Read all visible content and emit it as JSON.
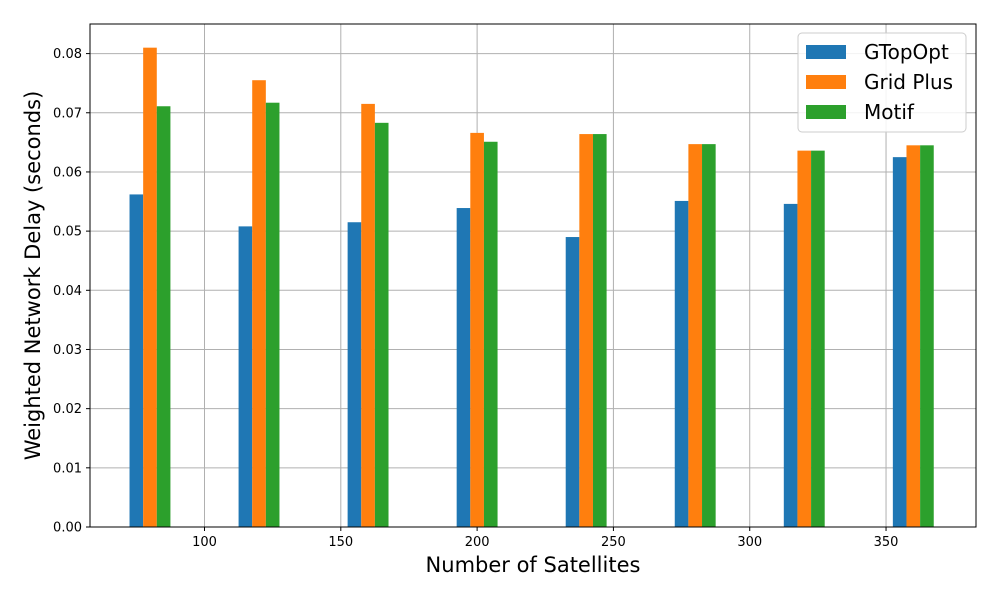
{
  "chart_data": {
    "type": "bar",
    "xlabel": "Number of Satellites",
    "ylabel": "Weighted Network Delay (seconds)",
    "x": [
      80,
      120,
      160,
      200,
      240,
      280,
      320,
      360
    ],
    "bar_width": 5,
    "xlim": [
      58,
      383
    ],
    "ylim": [
      0,
      0.085
    ],
    "xticks": [
      100,
      150,
      200,
      250,
      300,
      350
    ],
    "yticks": [
      0.0,
      0.01,
      0.02,
      0.03,
      0.04,
      0.05,
      0.06,
      0.07,
      0.08
    ],
    "ytick_labels": [
      "0.00",
      "0.01",
      "0.02",
      "0.03",
      "0.04",
      "0.05",
      "0.06",
      "0.07",
      "0.08"
    ],
    "grid": true,
    "legend_position": "top-right",
    "series": [
      {
        "name": "GTopOpt",
        "color": "#1f77b4",
        "values": [
          0.0562,
          0.0508,
          0.0515,
          0.0539,
          0.049,
          0.0551,
          0.0546,
          0.0625
        ]
      },
      {
        "name": "Grid Plus",
        "color": "#ff7f0e",
        "values": [
          0.081,
          0.0755,
          0.0715,
          0.0666,
          0.0664,
          0.0647,
          0.0636,
          0.0645
        ]
      },
      {
        "name": "Motif",
        "color": "#2ca02c",
        "values": [
          0.0711,
          0.0717,
          0.0683,
          0.0651,
          0.0664,
          0.0647,
          0.0636,
          0.0645
        ]
      }
    ]
  }
}
